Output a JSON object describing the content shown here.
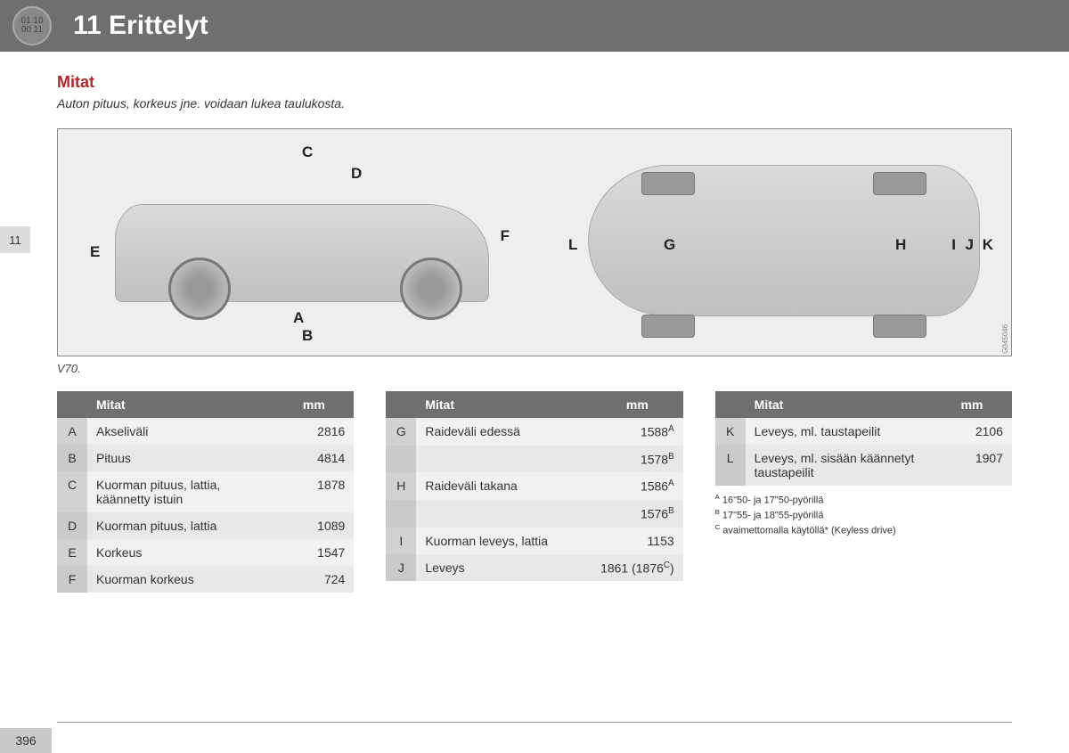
{
  "header": {
    "icon_top": "01 10",
    "icon_bottom": "00 11",
    "title": "11 Erittelyt"
  },
  "side_tab": "11",
  "section": {
    "title": "Mitat",
    "desc": "Auton pituus, korkeus jne. voidaan lukea taulukosta."
  },
  "diagram": {
    "labels": {
      "A": "A",
      "B": "B",
      "C": "C",
      "D": "D",
      "E": "E",
      "F": "F",
      "G": "G",
      "H": "H",
      "I": "I",
      "J": "J",
      "K": "K",
      "L": "L"
    },
    "code": "G045046",
    "model_caption": "V70."
  },
  "tables": {
    "header_label": "Mitat",
    "header_value": "mm",
    "col1": [
      {
        "key": "A",
        "label": "Akseliväli",
        "value": "2816"
      },
      {
        "key": "B",
        "label": "Pituus",
        "value": "4814"
      },
      {
        "key": "C",
        "label": "Kuorman pituus, lattia, käännetty istuin",
        "value": "1878"
      },
      {
        "key": "D",
        "label": "Kuorman pituus, lattia",
        "value": "1089"
      },
      {
        "key": "E",
        "label": "Korkeus",
        "value": "1547"
      },
      {
        "key": "F",
        "label": "Kuorman korkeus",
        "value": "724"
      }
    ],
    "col2": [
      {
        "key": "G",
        "label": "Raideväli edessä",
        "value": "1588",
        "sup": "A"
      },
      {
        "key": "",
        "label": "",
        "value": "1578",
        "sup": "B"
      },
      {
        "key": "H",
        "label": "Raideväli takana",
        "value": "1586",
        "sup": "A"
      },
      {
        "key": "",
        "label": "",
        "value": "1576",
        "sup": "B"
      },
      {
        "key": "I",
        "label": "Kuorman leveys, lattia",
        "value": "1153"
      },
      {
        "key": "J",
        "label": "Leveys",
        "value": "1861 (1876",
        "sup": "C",
        "suffix": ")"
      }
    ],
    "col3": [
      {
        "key": "K",
        "label": "Leveys, ml. taustapeilit",
        "value": "2106"
      },
      {
        "key": "L",
        "label": "Leveys, ml. sisään käännetyt taustapeilit",
        "value": "1907"
      }
    ]
  },
  "footnotes": {
    "A": "16\"50- ja 17\"50-pyörillä",
    "B": "17\"55- ja 18\"55-pyörillä",
    "C": "avaimettomalla käytöllä* (Keyless drive)"
  },
  "page_number": "396"
}
